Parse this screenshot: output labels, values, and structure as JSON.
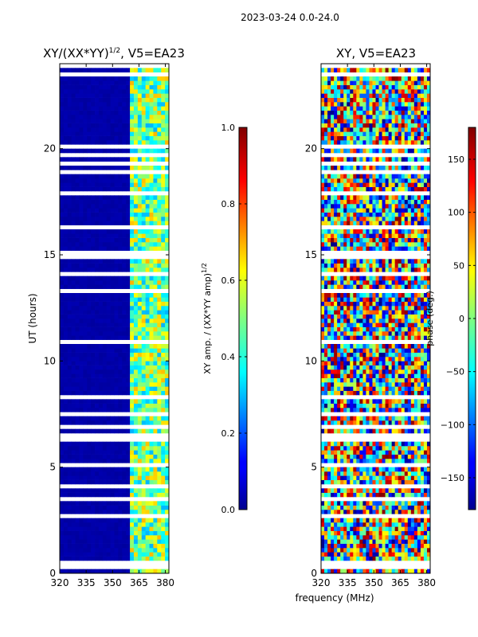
{
  "chart_data": [
    {
      "type": "heatmap",
      "title": "XY/(XX*YY)",
      "title_sup": "1/2",
      "title_tail": ", V5=EA23",
      "xlabel": "",
      "ylabel": "UT (hours)",
      "xlim": [
        320,
        382
      ],
      "ylim": [
        0,
        24
      ],
      "xticks": [
        320,
        335,
        350,
        365,
        380
      ],
      "yticks": [
        0,
        5,
        10,
        15,
        20
      ],
      "colorbar": {
        "label": "XY amp. / (XX*YY amp)",
        "label_sup": "1/2",
        "range": [
          0.0,
          1.0
        ],
        "ticks": [
          "0.0",
          "0.2",
          "0.4",
          "0.6",
          "0.8",
          "1.0"
        ],
        "tick_values": [
          0.0,
          0.2,
          0.4,
          0.6,
          0.8,
          1.0
        ]
      },
      "colormap": "jet",
      "low_band_mhz": [
        320,
        360
      ],
      "low_band_value": 0.03,
      "high_band_mhz": [
        360,
        382
      ],
      "high_band_range": [
        0.3,
        0.7
      ]
    },
    {
      "type": "heatmap",
      "title": "XY, V5=EA23",
      "xlabel": "frequency (MHz)",
      "ylabel": "",
      "xlim": [
        320,
        382
      ],
      "ylim": [
        0,
        24
      ],
      "xticks": [
        320,
        335,
        350,
        365,
        380
      ],
      "yticks": [
        0,
        5,
        10,
        15,
        20
      ],
      "colorbar": {
        "label": "phase (deg.)",
        "range": [
          -180,
          180
        ],
        "ticks": [
          "150",
          "100",
          "50",
          "0",
          "−50",
          "−100",
          "−150"
        ],
        "tick_values": [
          150,
          100,
          50,
          0,
          -50,
          -100,
          -150
        ]
      },
      "colormap": "jet",
      "value_range": [
        -180,
        180
      ]
    }
  ],
  "suptitle": "2023-03-24 0.0-24.0",
  "colors": {
    "jet_dark_blue": "#00008f",
    "jet_cyan": "#00ffff",
    "jet_yellow": "#ffff00",
    "jet_dark_red": "#800000"
  }
}
